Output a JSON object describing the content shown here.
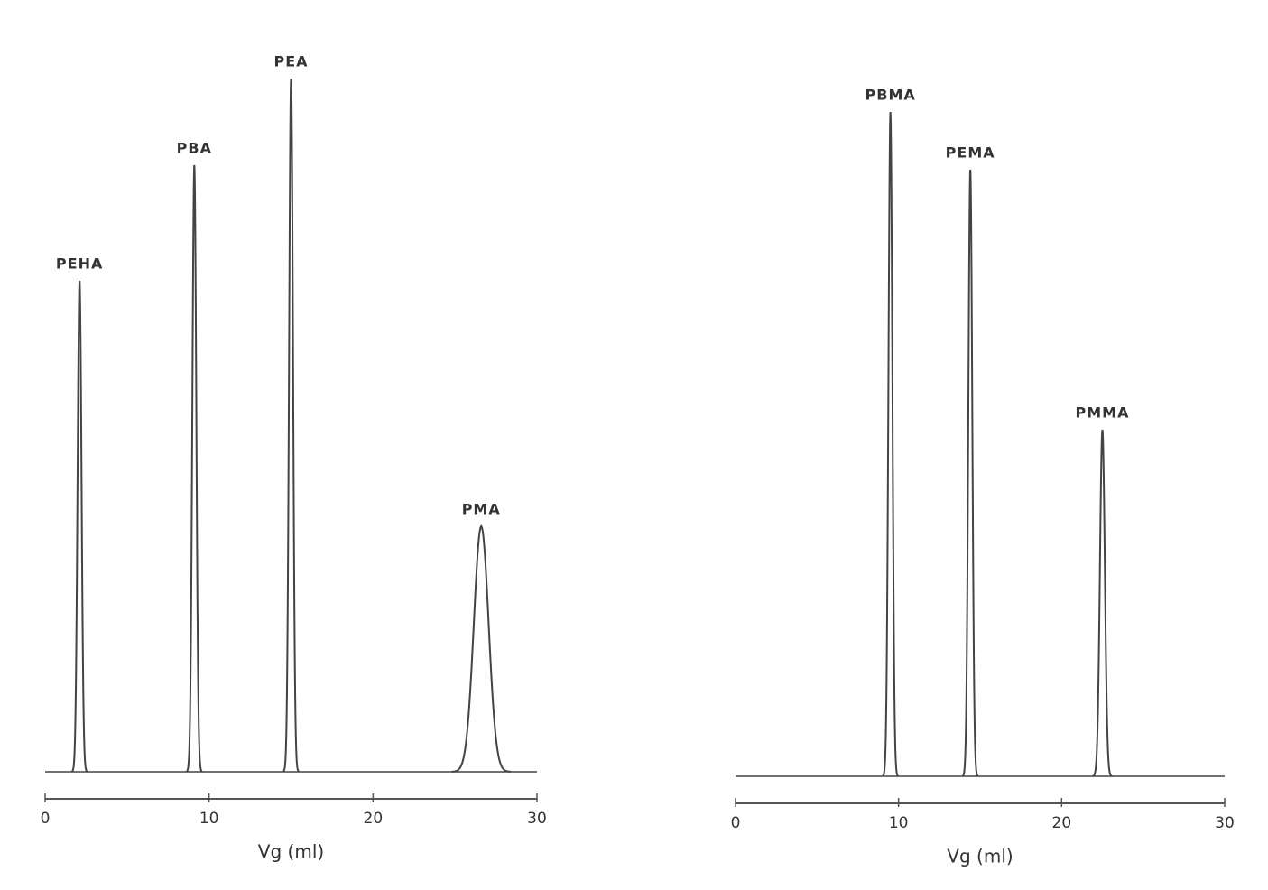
{
  "chart_data": [
    {
      "type": "chromatogram",
      "xlabel": "Vg (ml)",
      "xlim": [
        0,
        30
      ],
      "xticks": [
        0,
        10,
        20,
        30
      ],
      "ylim": [
        0,
        100
      ],
      "color": "#444",
      "peaks": [
        "PEHA",
        "PBA",
        "PEA",
        "PMA"
      ],
      "x": [
        2.1,
        9.1,
        15.0,
        26.6
      ],
      "values": [
        68,
        84,
        96,
        34
      ],
      "widths": [
        0.12,
        0.12,
        0.12,
        0.45
      ]
    },
    {
      "type": "chromatogram",
      "xlabel": "Vg (ml)",
      "xlim": [
        0,
        30
      ],
      "xticks": [
        0,
        10,
        20,
        30
      ],
      "ylim": [
        0,
        100
      ],
      "color": "#444",
      "peaks": [
        "PBMA",
        "PEMA",
        "PMMA"
      ],
      "x": [
        9.5,
        14.4,
        22.5
      ],
      "values": [
        92,
        84,
        48
      ],
      "widths": [
        0.12,
        0.12,
        0.15
      ]
    }
  ]
}
